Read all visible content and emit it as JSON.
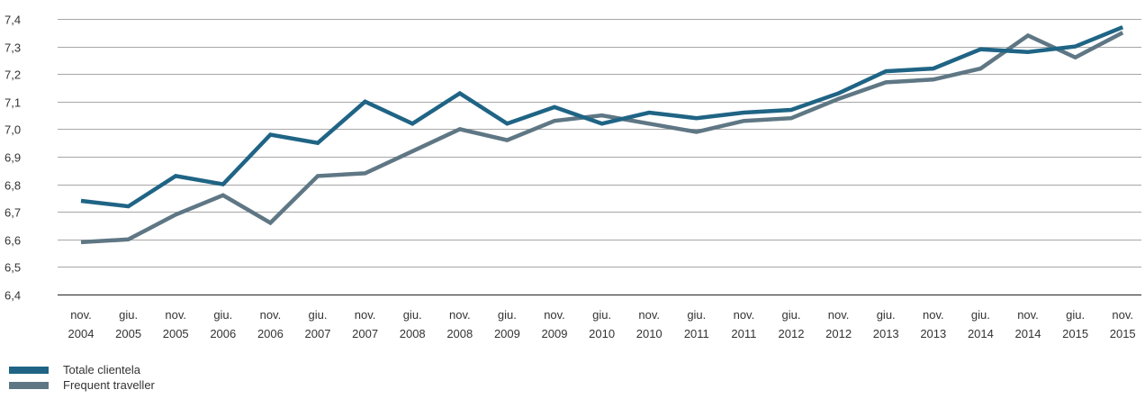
{
  "chart_data": {
    "type": "line",
    "x_label_pairs": [
      [
        "nov.",
        "2004"
      ],
      [
        "giu.",
        "2005"
      ],
      [
        "nov.",
        "2005"
      ],
      [
        "giu.",
        "2006"
      ],
      [
        "nov.",
        "2006"
      ],
      [
        "giu.",
        "2007"
      ],
      [
        "nov.",
        "2007"
      ],
      [
        "giu.",
        "2008"
      ],
      [
        "nov.",
        "2008"
      ],
      [
        "giu.",
        "2009"
      ],
      [
        "nov.",
        "2009"
      ],
      [
        "giu.",
        "2010"
      ],
      [
        "nov.",
        "2010"
      ],
      [
        "giu.",
        "2011"
      ],
      [
        "nov.",
        "2011"
      ],
      [
        "giu.",
        "2012"
      ],
      [
        "nov.",
        "2012"
      ],
      [
        "giu.",
        "2013"
      ],
      [
        "nov.",
        "2013"
      ],
      [
        "giu.",
        "2014"
      ],
      [
        "nov.",
        "2014"
      ],
      [
        "giu.",
        "2015"
      ],
      [
        "nov.",
        "2015"
      ]
    ],
    "y_ticks": [
      "6,4",
      "6,5",
      "6,6",
      "6,7",
      "6,8",
      "6,9",
      "7,0",
      "7,1",
      "7,2",
      "7,3",
      "7,4"
    ],
    "ylim": [
      6.4,
      7.4
    ],
    "grid": true,
    "legend_position": "bottom-left",
    "series": [
      {
        "name": "Totale clientela",
        "color": "#1f6485",
        "values": [
          6.74,
          6.72,
          6.83,
          6.8,
          6.98,
          6.95,
          7.1,
          7.02,
          7.13,
          7.02,
          7.08,
          7.02,
          7.06,
          7.04,
          7.06,
          7.07,
          7.13,
          7.21,
          7.22,
          7.29,
          7.28,
          7.3,
          7.37
        ]
      },
      {
        "name": "Frequent traveller",
        "color": "#5f7784",
        "values": [
          6.59,
          6.6,
          6.69,
          6.76,
          6.66,
          6.83,
          6.84,
          6.92,
          7.0,
          6.96,
          7.03,
          7.05,
          7.02,
          6.99,
          7.03,
          7.04,
          7.11,
          7.17,
          7.18,
          7.22,
          7.34,
          7.26,
          7.35
        ]
      }
    ]
  }
}
